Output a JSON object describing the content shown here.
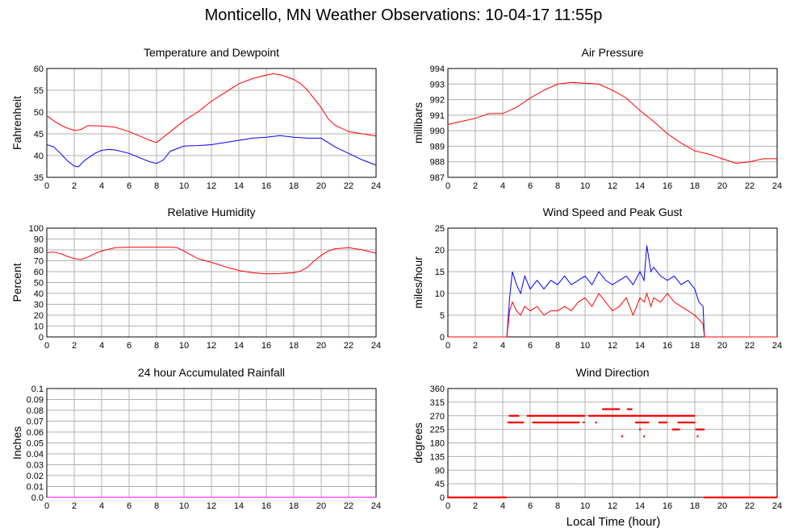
{
  "page": {
    "title": "Monticello, MN Weather Observations: 10-04-17 11:55p",
    "xlabel_bottom": "Local Time (hour)"
  },
  "colors": {
    "series_red": "#ff0000",
    "series_blue": "#0000ff",
    "grid": "#b0b0b0",
    "zero_line": "#ff00ff"
  },
  "chart_data": [
    {
      "id": "temp",
      "type": "line",
      "title": "Temperature and Dewpoint",
      "ylabel": "Fahrenheit",
      "xlim": [
        0,
        24
      ],
      "ylim": [
        35,
        60
      ],
      "yticks": [
        35,
        40,
        45,
        50,
        55,
        60
      ],
      "xticks": [
        0,
        2,
        4,
        6,
        8,
        10,
        12,
        14,
        16,
        18,
        20,
        22,
        24
      ],
      "grid": true,
      "series": [
        {
          "color": "red",
          "x": [
            0,
            0.5,
            1,
            1.5,
            2,
            2.5,
            3,
            4,
            5,
            6,
            7,
            7.5,
            8,
            9,
            10,
            11,
            12,
            13,
            14,
            15,
            16,
            16.5,
            17,
            18,
            18.5,
            19,
            19.5,
            20,
            20.5,
            21,
            22,
            23,
            24
          ],
          "y": [
            49.2,
            48,
            47,
            46.3,
            45.8,
            46,
            46.9,
            46.8,
            46.5,
            45.5,
            44.2,
            43.5,
            43,
            45.5,
            48,
            50,
            52.5,
            54.5,
            56.5,
            57.7,
            58.5,
            58.8,
            58.6,
            57.5,
            56.5,
            55,
            53,
            51,
            48.5,
            47,
            45.5,
            45,
            44.5
          ]
        },
        {
          "color": "blue",
          "x": [
            0,
            0.5,
            1,
            1.5,
            2,
            2.3,
            2.8,
            3.5,
            4,
            4.5,
            5,
            6,
            7,
            7.5,
            8,
            8.5,
            9,
            10,
            11,
            12,
            13,
            14,
            15,
            16,
            17,
            18,
            19,
            20,
            21,
            22,
            23,
            24
          ],
          "y": [
            42.5,
            42,
            40.5,
            38.8,
            37.6,
            37.4,
            39,
            40.5,
            41.2,
            41.4,
            41.3,
            40.5,
            39.2,
            38.6,
            38.2,
            39,
            41,
            42.2,
            42.3,
            42.5,
            43,
            43.5,
            44,
            44.2,
            44.6,
            44.2,
            44,
            44,
            42,
            40.5,
            39,
            37.8
          ]
        }
      ]
    },
    {
      "id": "pressure",
      "type": "line",
      "title": "Air Pressure",
      "ylabel": "millibars",
      "xlim": [
        0,
        24
      ],
      "ylim": [
        987,
        994
      ],
      "yticks": [
        987,
        988,
        989,
        990,
        991,
        992,
        993,
        994
      ],
      "xticks": [
        0,
        2,
        4,
        6,
        8,
        10,
        12,
        14,
        16,
        18,
        20,
        22,
        24
      ],
      "grid": true,
      "series": [
        {
          "color": "red",
          "x": [
            0,
            1,
            2,
            3,
            4,
            5,
            6,
            7,
            8,
            9,
            10,
            11,
            12,
            13,
            14,
            15,
            16,
            17,
            18,
            19,
            20,
            21,
            22,
            23,
            24
          ],
          "y": [
            990.4,
            990.6,
            990.8,
            991.1,
            991.1,
            991.5,
            992.1,
            992.6,
            993,
            993.1,
            993.05,
            993,
            992.6,
            992.1,
            991.3,
            990.6,
            989.8,
            989.2,
            988.7,
            988.5,
            988.2,
            987.9,
            988,
            988.2,
            988.2
          ]
        }
      ]
    },
    {
      "id": "humidity",
      "type": "line",
      "title": "Relative Humidity",
      "ylabel": "Percent",
      "xlim": [
        0,
        24
      ],
      "ylim": [
        0,
        100
      ],
      "yticks": [
        0,
        10,
        20,
        30,
        40,
        50,
        60,
        70,
        80,
        90,
        100
      ],
      "xticks": [
        0,
        2,
        4,
        6,
        8,
        10,
        12,
        14,
        16,
        18,
        20,
        22,
        24
      ],
      "grid": true,
      "series": [
        {
          "color": "red",
          "x": [
            0,
            0.5,
            1,
            1.5,
            2,
            2.5,
            3,
            3.5,
            4,
            5,
            6,
            7,
            8,
            9,
            9.5,
            10,
            11,
            12,
            13,
            14,
            15,
            16,
            17,
            18,
            18.5,
            19,
            19.5,
            20,
            20.5,
            21,
            22,
            23,
            24
          ],
          "y": [
            77.5,
            78,
            76.5,
            74,
            72,
            71,
            73.5,
            76.5,
            79,
            82,
            82.5,
            82.5,
            82.5,
            82.5,
            82,
            79,
            72,
            68.5,
            64.5,
            61,
            59,
            58,
            58.2,
            59,
            60.5,
            64,
            70,
            75,
            79,
            81,
            82,
            80,
            77
          ]
        }
      ]
    },
    {
      "id": "wind",
      "type": "line",
      "title": "Wind Speed and Peak Gust",
      "ylabel": "miles/hour",
      "xlim": [
        0,
        24
      ],
      "ylim": [
        0,
        25
      ],
      "yticks": [
        0,
        5,
        10,
        15,
        20,
        25
      ],
      "xticks": [
        0,
        2,
        4,
        6,
        8,
        10,
        12,
        14,
        16,
        18,
        20,
        22,
        24
      ],
      "grid": true,
      "series": [
        {
          "color": "blue",
          "x": [
            0,
            4.3,
            4.5,
            4.7,
            5,
            5.3,
            5.6,
            6,
            6.5,
            7,
            7.5,
            8,
            8.5,
            9,
            9.5,
            10,
            10.5,
            11,
            11.5,
            12,
            12.5,
            13,
            13.5,
            14,
            14.3,
            14.5,
            14.8,
            15,
            15.5,
            16,
            16.5,
            17,
            17.5,
            18,
            18.3,
            18.6,
            18.7,
            24
          ],
          "y": [
            0,
            0,
            9,
            15,
            12,
            10,
            14,
            11,
            13,
            11,
            13,
            12,
            14,
            12,
            13,
            14,
            12,
            15,
            13,
            12,
            13,
            14,
            12,
            15,
            13,
            21,
            15,
            16,
            14,
            13,
            14,
            12,
            13,
            11,
            8,
            7,
            0,
            0
          ]
        },
        {
          "color": "red",
          "x": [
            0,
            4.3,
            4.5,
            4.7,
            5,
            5.3,
            5.6,
            6,
            6.5,
            7,
            7.5,
            8,
            8.5,
            9,
            9.5,
            10,
            10.5,
            11,
            11.5,
            12,
            12.5,
            13,
            13.5,
            14,
            14.3,
            14.5,
            14.8,
            15,
            15.5,
            16,
            16.5,
            17,
            17.5,
            18,
            18.3,
            18.6,
            18.7,
            24
          ],
          "y": [
            0,
            0,
            6,
            8,
            6,
            5,
            7,
            6,
            7,
            5,
            6,
            6,
            7,
            6,
            8,
            9,
            7,
            10,
            8,
            6,
            7,
            9,
            5,
            9,
            8,
            10,
            7,
            9,
            8,
            10,
            8,
            7,
            6,
            5,
            4,
            3,
            0,
            0
          ]
        }
      ]
    },
    {
      "id": "rain",
      "type": "line",
      "title": "24 hour Accumulated Rainfall",
      "ylabel": "Inches",
      "xlim": [
        0,
        24
      ],
      "ylim": [
        0,
        0.1
      ],
      "yticks": [
        "0.0",
        "0.01",
        "0.02",
        "0.03",
        "0.04",
        "0.05",
        "0.06",
        "0.07",
        "0.08",
        "0.09",
        "0.1"
      ],
      "xticks": [
        0,
        2,
        4,
        6,
        8,
        10,
        12,
        14,
        16,
        18,
        20,
        22,
        24
      ],
      "grid": true,
      "series": [
        {
          "color": "magenta",
          "x": [
            0,
            24
          ],
          "y": [
            0,
            0
          ]
        }
      ]
    },
    {
      "id": "winddir",
      "type": "scatter",
      "title": "Wind Direction",
      "ylabel": "degrees",
      "xlim": [
        0,
        24
      ],
      "ylim": [
        0,
        360
      ],
      "yticks": [
        0,
        45,
        90,
        135,
        180,
        225,
        270,
        315,
        360
      ],
      "xticks": [
        0,
        2,
        4,
        6,
        8,
        10,
        12,
        14,
        16,
        18,
        20,
        22,
        24
      ],
      "grid": true,
      "segments": [
        {
          "x": [
            0,
            4.3
          ],
          "y": 0
        },
        {
          "x": [
            4.4,
            5.5
          ],
          "y": 248
        },
        {
          "x": [
            4.5,
            5.2
          ],
          "y": 270
        },
        {
          "x": [
            5.8,
            10
          ],
          "y": 270
        },
        {
          "x": [
            6.2,
            9.6
          ],
          "y": 248
        },
        {
          "x": [
            10.3,
            18
          ],
          "y": 270
        },
        {
          "x": [
            11.3,
            12.5
          ],
          "y": 292
        },
        {
          "x": [
            13.1,
            13.4
          ],
          "y": 292
        },
        {
          "x": [
            13.7,
            14.6
          ],
          "y": 248
        },
        {
          "x": [
            15.4,
            16
          ],
          "y": 248
        },
        {
          "x": [
            16.8,
            18
          ],
          "y": 248
        },
        {
          "x": [
            16.4,
            16.9
          ],
          "y": 225
        },
        {
          "x": [
            18.1,
            18.7
          ],
          "y": 225
        },
        {
          "x": [
            18.7,
            24
          ],
          "y": 0
        }
      ],
      "points": [
        {
          "x": 12.7,
          "y": 202
        },
        {
          "x": 14,
          "y": 225
        },
        {
          "x": 14.3,
          "y": 202
        },
        {
          "x": 18.2,
          "y": 202
        },
        {
          "x": 9.9,
          "y": 248
        },
        {
          "x": 10.8,
          "y": 248
        }
      ]
    }
  ]
}
